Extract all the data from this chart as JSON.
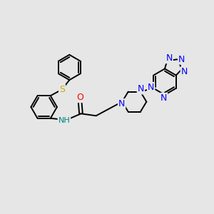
{
  "background_color": "#e6e6e6",
  "bond_color": "#000000",
  "bond_width": 1.4,
  "atom_colors": {
    "N": "#0000ff",
    "O": "#ff0000",
    "S": "#ccaa00",
    "NH": "#008080",
    "C": "#000000"
  },
  "figsize": [
    3.0,
    3.0
  ],
  "dpi": 100
}
